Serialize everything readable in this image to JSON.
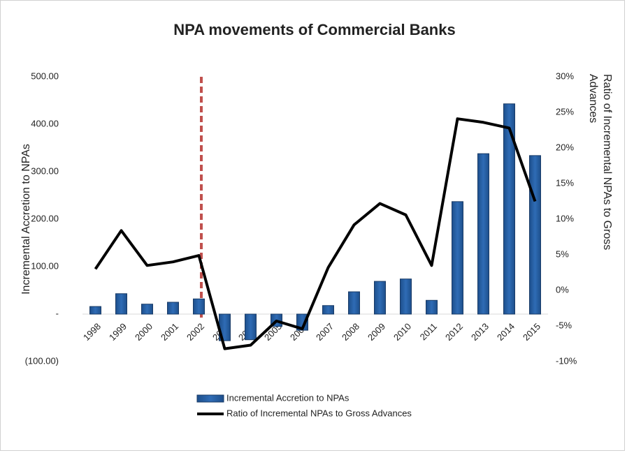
{
  "chart_data": {
    "type": "bar_line",
    "title": "NPA movements of Commercial Banks",
    "y_label": "Incremental Accretion to NPAs",
    "y2_label": [
      "Ratio of Incremental NPAs to Gross",
      "Advances"
    ],
    "categories": [
      "1998",
      "1999",
      "2000",
      "2001",
      "2002",
      "2003",
      "2004",
      "2005",
      "2006",
      "2007",
      "2008",
      "2009",
      "2010",
      "2011",
      "2012",
      "2013",
      "2014",
      "2015"
    ],
    "series": [
      {
        "name": "Incremental Accretion to NPAs",
        "type": "bar",
        "color": "#2f6cb5",
        "axis": "y",
        "values": [
          16,
          43,
          21,
          25,
          32,
          -56,
          -54,
          -26,
          -34,
          18,
          47,
          69,
          74,
          29,
          237,
          338,
          443,
          334
        ]
      },
      {
        "name": "Ratio of Incremental NPAs to Gross Advances",
        "type": "line",
        "color": "#000000",
        "axis": "y2",
        "values": [
          3.0,
          8.4,
          3.5,
          4.0,
          4.9,
          -8.2,
          -7.7,
          -4.3,
          -5.4,
          3.2,
          9.2,
          12.2,
          10.6,
          3.5,
          24.1,
          23.6,
          22.8,
          12.5
        ]
      }
    ],
    "ylim": [
      -100,
      500
    ],
    "yticks": [
      {
        "value": 500,
        "label": "500.00"
      },
      {
        "value": 400,
        "label": "400.00"
      },
      {
        "value": 300,
        "label": "300.00"
      },
      {
        "value": 200,
        "label": "200.00"
      },
      {
        "value": 100,
        "label": "100.00"
      },
      {
        "value": 0,
        "label": "-"
      },
      {
        "value": -100,
        "label": "(100.00)"
      }
    ],
    "y2lim": [
      -10,
      30
    ],
    "y2ticks": [
      {
        "value": 30,
        "label": "30%"
      },
      {
        "value": 25,
        "label": "25%"
      },
      {
        "value": 20,
        "label": "20%"
      },
      {
        "value": 15,
        "label": "15%"
      },
      {
        "value": 10,
        "label": "10%"
      },
      {
        "value": 5,
        "label": "5%"
      },
      {
        "value": 0,
        "label": "0%"
      },
      {
        "value": -5,
        "label": "-5%"
      },
      {
        "value": -10,
        "label": "-10%"
      }
    ],
    "legend": "bottom"
  }
}
